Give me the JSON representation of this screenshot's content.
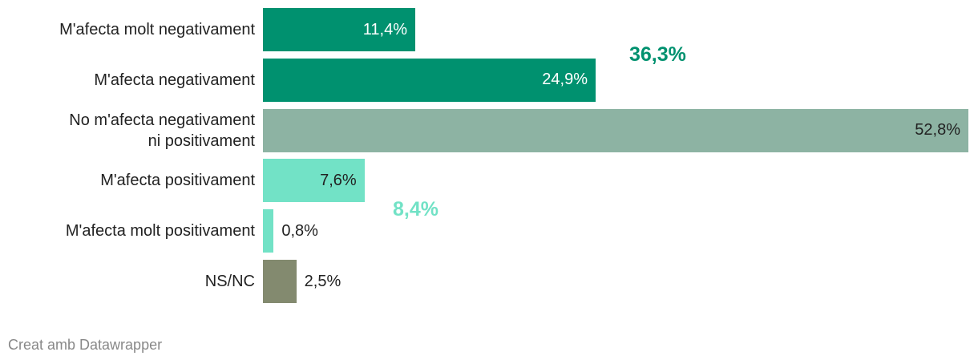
{
  "chart_data": {
    "type": "bar",
    "orientation": "horizontal",
    "categories": [
      "M'afecta molt negativament",
      "M'afecta negativament",
      "No m'afecta negativament\nni positivament",
      "M'afecta positivament",
      "M'afecta molt positivament",
      "NS/NC"
    ],
    "values": [
      11.4,
      24.9,
      52.8,
      7.6,
      0.8,
      2.5
    ],
    "value_labels": [
      "11,4%",
      "24,9%",
      "52,8%",
      "7,6%",
      "0,8%",
      "2,5%"
    ],
    "colors": [
      "#00916f",
      "#00916f",
      "#8db3a3",
      "#72e2c6",
      "#72e2c6",
      "#838a6f"
    ],
    "xlim": [
      0,
      52.8
    ],
    "annotations": [
      {
        "text": "36,3%",
        "color": "#00916f"
      },
      {
        "text": "8,4%",
        "color": "#72e2c6"
      }
    ],
    "footer": "Creat amb Datawrapper"
  }
}
